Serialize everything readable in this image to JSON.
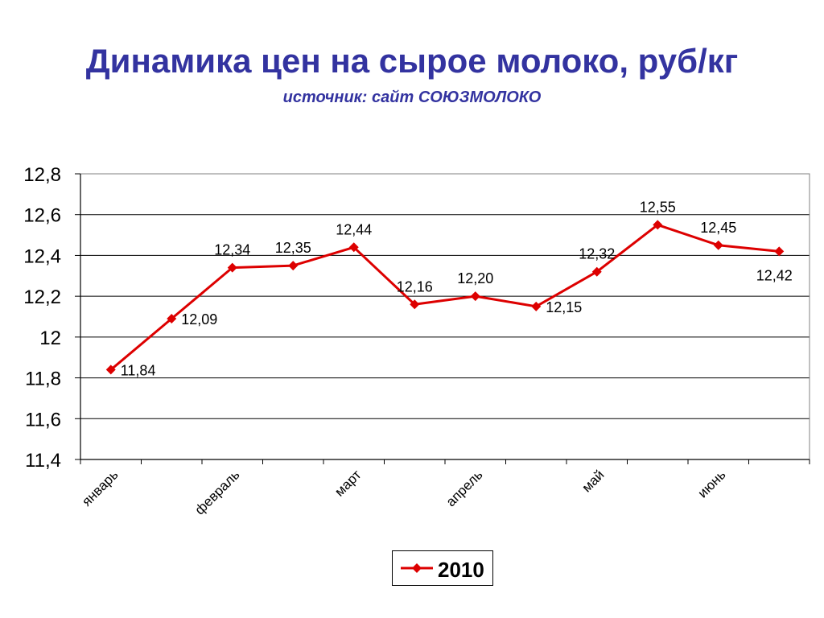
{
  "header": {
    "title": "Динамика цен на сырое молоко, руб/кг",
    "subtitle": "источник: сайт СОЮЗМОЛОКО"
  },
  "chart_data": {
    "type": "line",
    "title": "Динамика цен на сырое молоко, руб/кг",
    "subtitle": "источник: сайт СОЮЗМОЛОКО",
    "xlabel": "",
    "ylabel": "",
    "ylim": [
      11.4,
      12.8
    ],
    "yticks": [
      {
        "value": 11.4,
        "label": "11,4"
      },
      {
        "value": 11.6,
        "label": "11,6"
      },
      {
        "value": 11.8,
        "label": "11,8"
      },
      {
        "value": 12.0,
        "label": "12"
      },
      {
        "value": 12.2,
        "label": "12,2"
      },
      {
        "value": 12.4,
        "label": "12,4"
      },
      {
        "value": 12.6,
        "label": "12,6"
      },
      {
        "value": 12.8,
        "label": "12,8"
      }
    ],
    "grid": true,
    "legend_position": "bottom",
    "category_count": 12,
    "month_labels": [
      {
        "label": "январь",
        "index": 0
      },
      {
        "label": "февраль",
        "index": 2
      },
      {
        "label": "март",
        "index": 4
      },
      {
        "label": "апрель",
        "index": 6
      },
      {
        "label": "май",
        "index": 8
      },
      {
        "label": "июнь",
        "index": 10
      }
    ],
    "series": [
      {
        "name": "2010",
        "color": "#dd0000",
        "values": [
          11.84,
          12.09,
          12.34,
          12.35,
          12.44,
          12.16,
          12.2,
          12.15,
          12.32,
          12.55,
          12.45,
          12.42
        ],
        "labels": [
          "11,84",
          "12,09",
          "12,34",
          "12,35",
          "12,44",
          "12,16",
          "12,20",
          "12,15",
          "12,32",
          "12,55",
          "12,45",
          "12,42"
        ],
        "label_positions": [
          "right",
          "right",
          "above",
          "above",
          "above",
          "above",
          "above",
          "right",
          "above",
          "above",
          "above",
          "below"
        ]
      }
    ]
  }
}
